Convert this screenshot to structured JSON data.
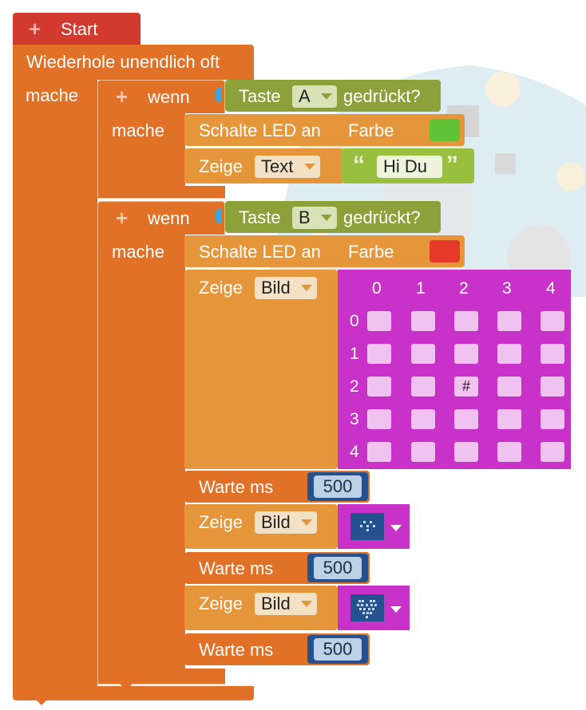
{
  "start": {
    "label": "Start"
  },
  "loop": {
    "label": "Wiederhole unendlich oft",
    "do_label": "mache"
  },
  "if1": {
    "if_label": "wenn",
    "do_label": "mache",
    "condition": {
      "prefix": "Taste",
      "button": "A",
      "suffix": "gedrückt?"
    },
    "led": {
      "label": "Schalte LED an",
      "color_label": "Farbe",
      "color": "#62c237"
    },
    "show": {
      "label": "Zeige",
      "type": "Text",
      "open_quote": "“",
      "value": "Hi Du",
      "close_quote": "”"
    }
  },
  "if2": {
    "if_label": "wenn",
    "do_label": "mache",
    "condition": {
      "prefix": "Taste",
      "button": "B",
      "suffix": "gedrückt?"
    },
    "led": {
      "label": "Schalte LED an",
      "color_label": "Farbe",
      "color": "#e53a2a"
    },
    "show_image": {
      "label": "Zeige",
      "type": "Bild",
      "col_headers": [
        "0",
        "1",
        "2",
        "3",
        "4"
      ],
      "row_headers": [
        "0",
        "1",
        "2",
        "3",
        "4"
      ],
      "cells": [
        [
          "",
          "",
          "",
          "",
          ""
        ],
        [
          "",
          "",
          "",
          "",
          ""
        ],
        [
          "",
          "",
          "#",
          "",
          ""
        ],
        [
          "",
          "",
          "",
          "",
          ""
        ],
        [
          "",
          "",
          "",
          "",
          ""
        ]
      ]
    },
    "wait1": {
      "label": "Warte ms",
      "value": "500"
    },
    "show2": {
      "label": "Zeige",
      "type": "Bild",
      "icon": "small-heart-icon"
    },
    "wait2": {
      "label": "Warte ms",
      "value": "500"
    },
    "show3": {
      "label": "Zeige",
      "type": "Bild",
      "icon": "heart-icon"
    },
    "wait3": {
      "label": "Warte ms",
      "value": "500"
    }
  },
  "colors": {
    "start": "#d23a2f",
    "loop": "#e07127",
    "olive": "#8ca13a",
    "action": "#e6963a",
    "magenta": "#c932c9",
    "number": "#25528e",
    "text": "#98bf3e"
  }
}
